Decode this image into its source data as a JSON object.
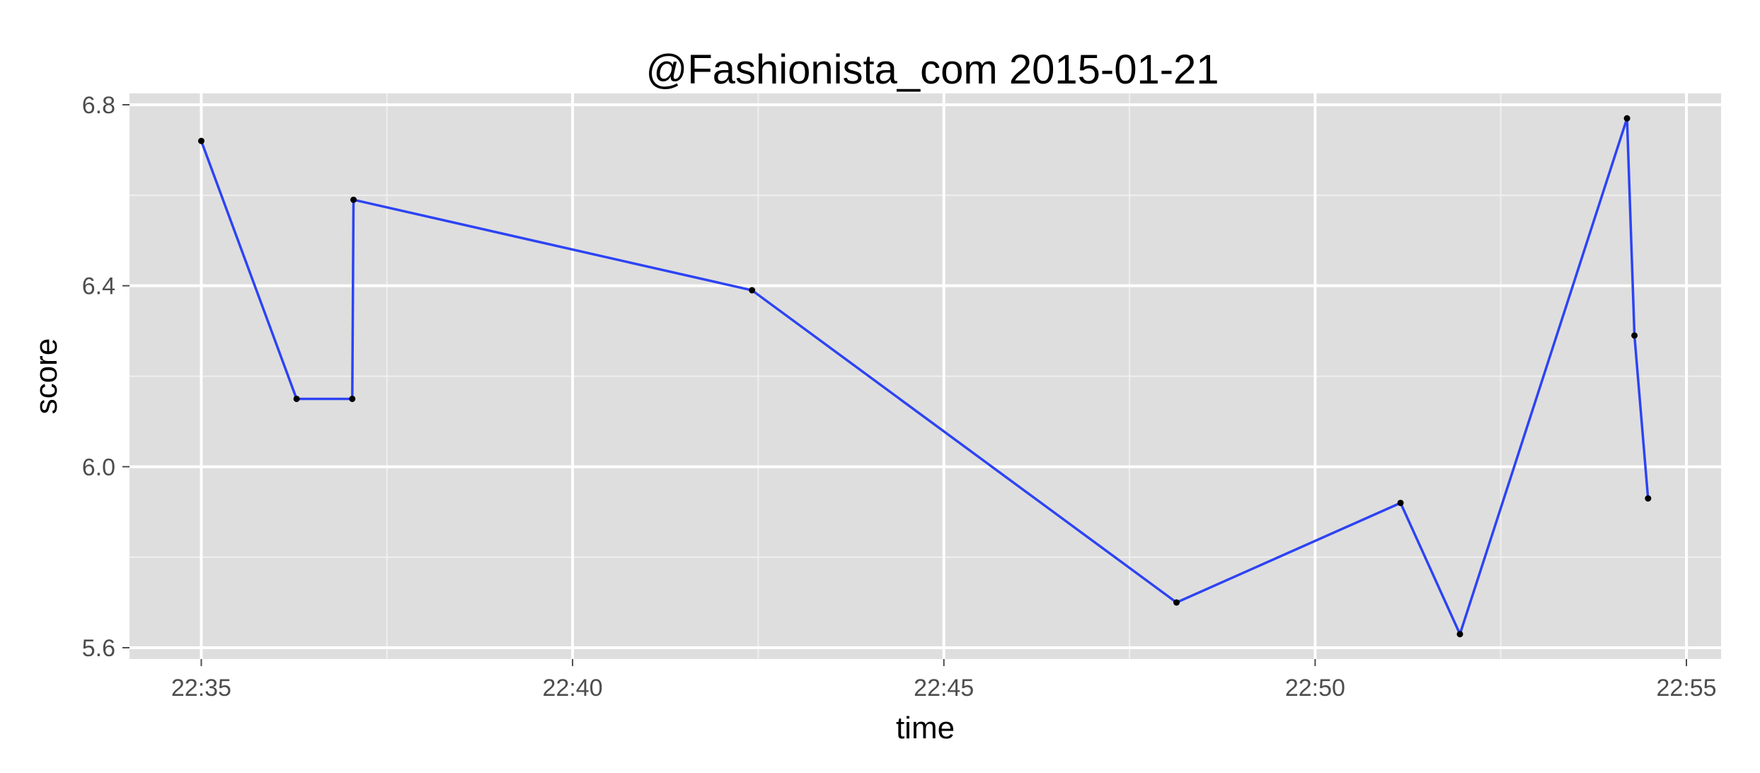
{
  "chart_data": {
    "type": "line",
    "title": "@Fashionista_com 2015-01-21",
    "xlabel": "time",
    "ylabel": "score",
    "x_unit": "time of day (HH:MM:SS)",
    "xlim": [
      "22:34:02",
      "22:55:28"
    ],
    "ylim": [
      5.575,
      6.825
    ],
    "x_ticks": [
      {
        "value": "22:35:00",
        "label": "22:35"
      },
      {
        "value": "22:40:00",
        "label": "22:40"
      },
      {
        "value": "22:45:00",
        "label": "22:45"
      },
      {
        "value": "22:50:00",
        "label": "22:50"
      },
      {
        "value": "22:55:00",
        "label": "22:55"
      }
    ],
    "y_ticks": [
      {
        "value": 5.6,
        "label": "5.6"
      },
      {
        "value": 6.0,
        "label": "6.0"
      },
      {
        "value": 6.4,
        "label": "6.4"
      },
      {
        "value": 6.8,
        "label": "6.8"
      }
    ],
    "x_minor_ticks": [
      "22:37:30",
      "22:42:30",
      "22:47:30",
      "22:52:30"
    ],
    "y_minor_ticks": [
      5.8,
      6.2,
      6.6
    ],
    "grid": true,
    "legend": "none",
    "series": [
      {
        "points": [
          {
            "x": "22:35:00",
            "y": 6.72
          },
          {
            "x": "22:36:17",
            "y": 6.15
          },
          {
            "x": "22:37:02",
            "y": 6.15
          },
          {
            "x": "22:37:03",
            "y": 6.59
          },
          {
            "x": "22:42:25",
            "y": 6.39
          },
          {
            "x": "22:48:08",
            "y": 5.7
          },
          {
            "x": "22:51:09",
            "y": 5.92
          },
          {
            "x": "22:51:57",
            "y": 5.63
          },
          {
            "x": "22:54:12",
            "y": 6.77
          },
          {
            "x": "22:54:18",
            "y": 6.29
          },
          {
            "x": "22:54:29",
            "y": 5.93
          }
        ]
      }
    ],
    "colors": {
      "line": "#2d43f3",
      "point": "#000000",
      "panel_background": "#dedede",
      "grid_major": "#ffffff",
      "grid_minor": "#efefef"
    }
  }
}
